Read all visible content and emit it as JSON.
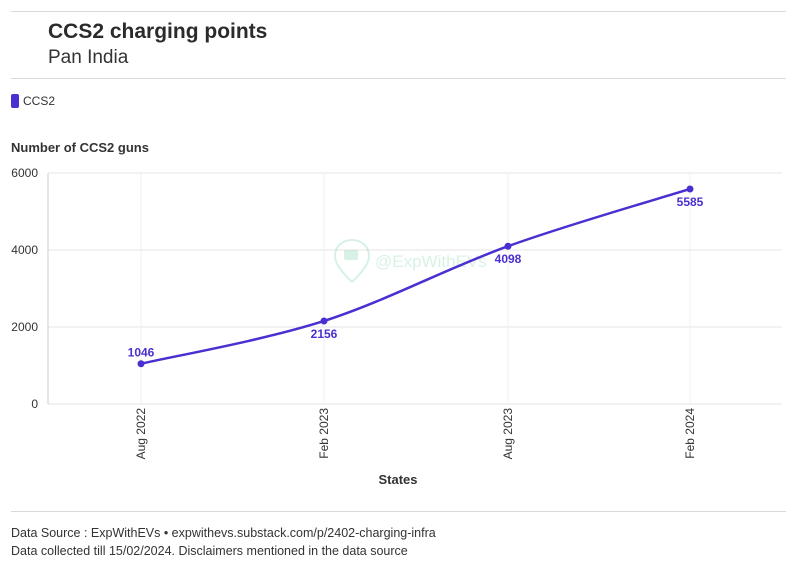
{
  "header": {
    "title": "CCS2 charging points",
    "subtitle": "Pan India"
  },
  "legend": {
    "label": "CCS2",
    "color": "#4b2fd1"
  },
  "watermark": {
    "text": "@ExpWithEVs",
    "icon": "location-pin-icon"
  },
  "chart_data": {
    "type": "line",
    "title": "CCS2 charging points",
    "subtitle": "Pan India",
    "xlabel": "States",
    "ylabel": "Number of CCS2 guns",
    "categories": [
      "Aug 2022",
      "Feb 2023",
      "Aug 2023",
      "Feb 2024"
    ],
    "series": [
      {
        "name": "CCS2",
        "values": [
          1046,
          2156,
          4098,
          5585
        ],
        "color": "#4b2fd1"
      }
    ],
    "ylim": [
      0,
      6000
    ],
    "yticks": [
      "0",
      "2000",
      "4000",
      "6000"
    ],
    "grid": true,
    "legend_position": "top-left"
  },
  "footer": {
    "source": "Data Source : ExpWithEVs • expwithevs.substack.com/p/2402-charging-infra",
    "note": "Data collected till 15/02/2024. Disclaimers mentioned in the data source"
  }
}
